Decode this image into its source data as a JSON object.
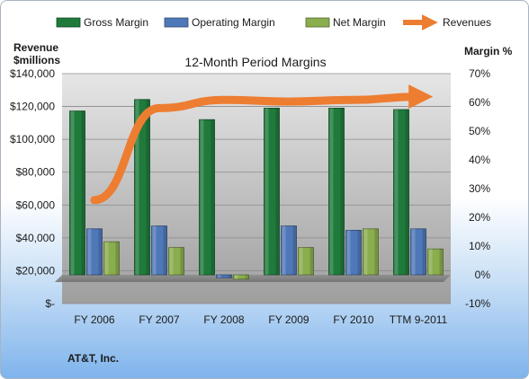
{
  "chart_data": {
    "type": "bar",
    "title": "12-Month Period Margins",
    "categories": [
      "FY 2006",
      "FY 2007",
      "FY 2008",
      "FY 2009",
      "FY 2010",
      "TTM 9-2011"
    ],
    "left_axis": {
      "label_line1": "Revenue",
      "label_line2": "$millions",
      "ylim": [
        0,
        140000
      ],
      "ticks": [
        "$-",
        "$20,000",
        "$40,000",
        "$60,000",
        "$80,000",
        "$100,000",
        "$120,000",
        "$140,000"
      ]
    },
    "right_axis": {
      "label": "Margin %",
      "ylim": [
        -10,
        70
      ],
      "ticks": [
        "-10%",
        "0%",
        "10%",
        "20%",
        "30%",
        "40%",
        "50%",
        "60%",
        "70%"
      ]
    },
    "series": [
      {
        "name": "Gross Margin",
        "axis": "right",
        "color": "#1f7a3c",
        "values": [
          57,
          61,
          54,
          58,
          58,
          57.5
        ]
      },
      {
        "name": "Operating Margin",
        "axis": "right",
        "color": "#4f78b8",
        "values": [
          16,
          17,
          -1,
          17,
          15.5,
          16
        ]
      },
      {
        "name": "Net Margin",
        "axis": "right",
        "color": "#8aad4e",
        "values": [
          11.5,
          9.5,
          -1.5,
          9.5,
          16,
          9
        ]
      },
      {
        "name": "Revenues",
        "axis": "left",
        "type": "line",
        "color": "#ed7d31",
        "values": [
          63000,
          119000,
          124000,
          123000,
          124000,
          126000
        ]
      }
    ],
    "grid": true,
    "legend_position": "top"
  },
  "footer": {
    "company": "AT&T, Inc."
  }
}
